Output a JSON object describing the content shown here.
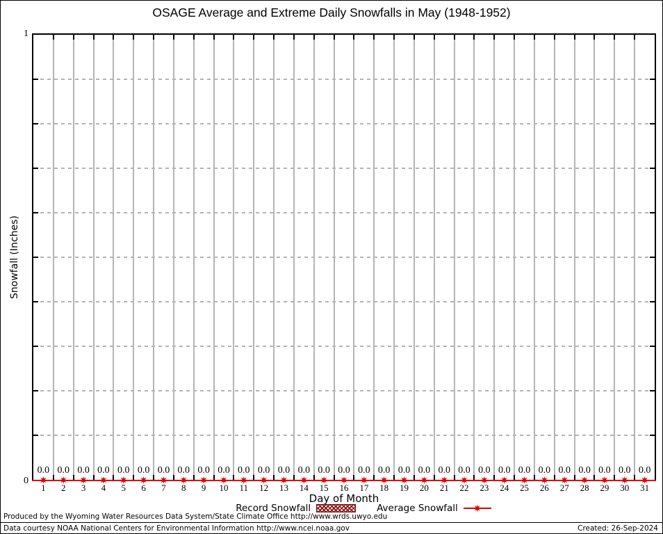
{
  "chart_data": {
    "type": "line",
    "title": "OSAGE Average and Extreme Daily Snowfalls in May (1948-1952)",
    "xlabel": "Day of Month",
    "ylabel": "Snowfall (Inches)",
    "ylim": [
      0,
      1
    ],
    "ytick_interval": 0.1,
    "ymax_label": "1",
    "ymin_label": "0",
    "grid": {
      "vertical": "solid-gray-at-day-boundaries",
      "horizontal": "dashed-gray"
    },
    "legend_position": "below-x-axis",
    "x": [
      1,
      2,
      3,
      4,
      5,
      6,
      7,
      8,
      9,
      10,
      11,
      12,
      13,
      14,
      15,
      16,
      17,
      18,
      19,
      20,
      21,
      22,
      23,
      24,
      25,
      26,
      27,
      28,
      29,
      30,
      31
    ],
    "series": [
      {
        "name": "Record Snowfall",
        "swatch": "hatched-box",
        "color": "#8b1414",
        "values": [
          0.0,
          0.0,
          0.0,
          0.0,
          0.0,
          0.0,
          0.0,
          0.0,
          0.0,
          0.0,
          0.0,
          0.0,
          0.0,
          0.0,
          0.0,
          0.0,
          0.0,
          0.0,
          0.0,
          0.0,
          0.0,
          0.0,
          0.0,
          0.0,
          0.0,
          0.0,
          0.0,
          0.0,
          0.0,
          0.0,
          0.0
        ]
      },
      {
        "name": "Average Snowfall",
        "swatch": "line-with-star-marker",
        "color": "#e00000",
        "values": [
          0.0,
          0.0,
          0.0,
          0.0,
          0.0,
          0.0,
          0.0,
          0.0,
          0.0,
          0.0,
          0.0,
          0.0,
          0.0,
          0.0,
          0.0,
          0.0,
          0.0,
          0.0,
          0.0,
          0.0,
          0.0,
          0.0,
          0.0,
          0.0,
          0.0,
          0.0,
          0.0,
          0.0,
          0.0,
          0.0,
          0.0
        ]
      }
    ],
    "point_labels": [
      "0.0",
      "0.0",
      "0.0",
      "0.0",
      "0.0",
      "0.0",
      "0.0",
      "0.0",
      "0.0",
      "0.0",
      "0.0",
      "0.0",
      "0.0",
      "0.0",
      "0.0",
      "0.0",
      "0.0",
      "0.0",
      "0.0",
      "0.0",
      "0.0",
      "0.0",
      "0.0",
      "0.0",
      "0.0",
      "0.0",
      "0.0",
      "0.0",
      "0.0",
      "0.0",
      "0.0"
    ]
  },
  "footer": {
    "line1": "Produced by the Wyoming Water Resources Data System/State Climate Office http://www.wrds.uwyo.edu",
    "line2": "Data courtesy NOAA National Centers for Environmental Information http://www.ncei.noaa.gov",
    "created": "Created: 26-Sep-2024"
  }
}
